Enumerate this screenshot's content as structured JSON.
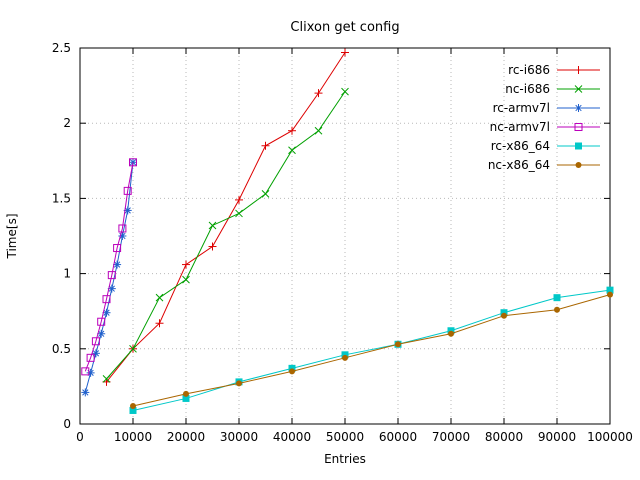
{
  "chart_data": {
    "type": "line",
    "title": "Clixon get config",
    "xlabel": "Entries",
    "ylabel": "Time[s]",
    "xlim": [
      0,
      100000
    ],
    "ylim": [
      0,
      2.5
    ],
    "x_ticks": [
      0,
      10000,
      20000,
      30000,
      40000,
      50000,
      60000,
      70000,
      80000,
      90000,
      100000
    ],
    "y_ticks": [
      0,
      0.5,
      1,
      1.5,
      2,
      2.5
    ],
    "grid": true,
    "grid_style": "dotted",
    "legend_position": "top-right-inside",
    "background_color": "#ffffff",
    "border_color": "#000000",
    "grid_color": "#b9b9b9",
    "series": [
      {
        "name": "rc-i686",
        "color": "#dd0000",
        "marker": "plus",
        "x": [
          5000,
          10000,
          15000,
          20000,
          25000,
          30000,
          35000,
          40000,
          45000,
          50000
        ],
        "y": [
          0.28,
          0.5,
          0.67,
          1.06,
          1.18,
          1.49,
          1.85,
          1.95,
          2.2,
          2.47
        ]
      },
      {
        "name": "nc-i686",
        "color": "#00a000",
        "marker": "cross",
        "x": [
          5000,
          10000,
          15000,
          20000,
          25000,
          30000,
          35000,
          40000,
          45000,
          50000
        ],
        "y": [
          0.3,
          0.5,
          0.84,
          0.96,
          1.32,
          1.4,
          1.53,
          1.82,
          1.95,
          2.21
        ]
      },
      {
        "name": "rc-armv7l",
        "color": "#2060cc",
        "marker": "asterisk",
        "x": [
          1000,
          2000,
          3000,
          4000,
          5000,
          6000,
          7000,
          8000,
          9000,
          10000
        ],
        "y": [
          0.21,
          0.34,
          0.47,
          0.6,
          0.74,
          0.9,
          1.06,
          1.25,
          1.42,
          1.74
        ]
      },
      {
        "name": "nc-armv7l",
        "color": "#bb00bb",
        "marker": "square-open",
        "x": [
          1000,
          2000,
          3000,
          4000,
          5000,
          6000,
          7000,
          8000,
          9000,
          10000
        ],
        "y": [
          0.35,
          0.44,
          0.55,
          0.68,
          0.83,
          0.99,
          1.17,
          1.3,
          1.55,
          1.74
        ]
      },
      {
        "name": "rc-x86_64",
        "color": "#00c8c8",
        "marker": "square-filled",
        "x": [
          10000,
          20000,
          30000,
          40000,
          50000,
          60000,
          70000,
          80000,
          90000,
          100000
        ],
        "y": [
          0.09,
          0.17,
          0.28,
          0.37,
          0.46,
          0.53,
          0.62,
          0.74,
          0.84,
          0.89
        ]
      },
      {
        "name": "nc-x86_64",
        "color": "#aa6600",
        "marker": "circle-filled",
        "x": [
          10000,
          20000,
          30000,
          40000,
          50000,
          60000,
          70000,
          80000,
          90000,
          100000
        ],
        "y": [
          0.12,
          0.2,
          0.27,
          0.35,
          0.44,
          0.53,
          0.6,
          0.72,
          0.76,
          0.86
        ]
      }
    ]
  }
}
